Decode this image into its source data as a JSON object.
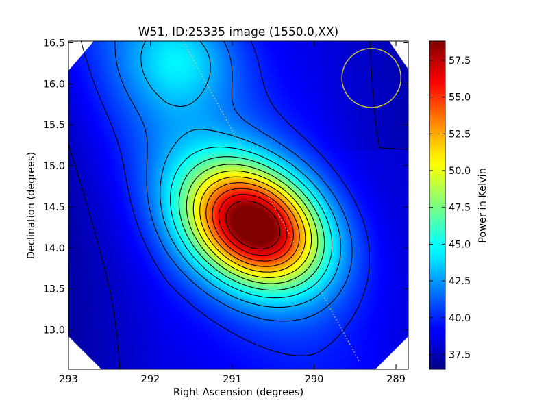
{
  "chart_data": {
    "type": "heatmap",
    "title": "W51, ID:25335 image (1550.0,XX)",
    "xlabel": "Right Ascension (degrees)",
    "ylabel": "Declination (degrees)",
    "colorbar_label": "Power in Kelvin",
    "colormap": "jet",
    "x_direction": "descending",
    "xlim": [
      293.0,
      288.85
    ],
    "ylim": [
      12.52,
      16.52
    ],
    "x_ticks": [
      293,
      292,
      291,
      290,
      289
    ],
    "x_tick_labels": [
      "293",
      "292",
      "291",
      "290",
      "289"
    ],
    "y_ticks": [
      13.0,
      13.5,
      14.0,
      14.5,
      15.0,
      15.5,
      16.0,
      16.5
    ],
    "y_tick_labels": [
      "13.0",
      "13.5",
      "14.0",
      "14.5",
      "15.0",
      "15.5",
      "16.0",
      "16.5"
    ],
    "color_range": [
      36.5,
      58.8
    ],
    "colorbar_ticks": [
      37.5,
      40.0,
      42.5,
      45.0,
      47.5,
      50.0,
      52.5,
      55.0,
      57.5
    ],
    "colorbar_tick_labels": [
      "37.5",
      "40.0",
      "42.5",
      "45.0",
      "47.5",
      "50.0",
      "52.5",
      "55.0",
      "57.5"
    ],
    "grid": false,
    "peak": {
      "ra": 290.73,
      "dec": 14.27,
      "value": 58.8
    },
    "secondary_peak": {
      "ra": 291.6,
      "dec": 16.3,
      "value": 41.5
    },
    "contour_levels": [
      38.0,
      40.0,
      41.6,
      43.2,
      44.8,
      46.4,
      48.0,
      49.6,
      51.2,
      52.8,
      54.4,
      56.0,
      57.6
    ],
    "beam_circle": {
      "ra": 289.3,
      "dec": 16.07,
      "radius_deg": 0.36,
      "color": "#c8c83c"
    },
    "galactic_plane_line": {
      "start": [
        291.6,
        16.52
      ],
      "end": [
        289.45,
        12.62
      ],
      "color": "#c8c8a0",
      "style": "dotted"
    }
  }
}
